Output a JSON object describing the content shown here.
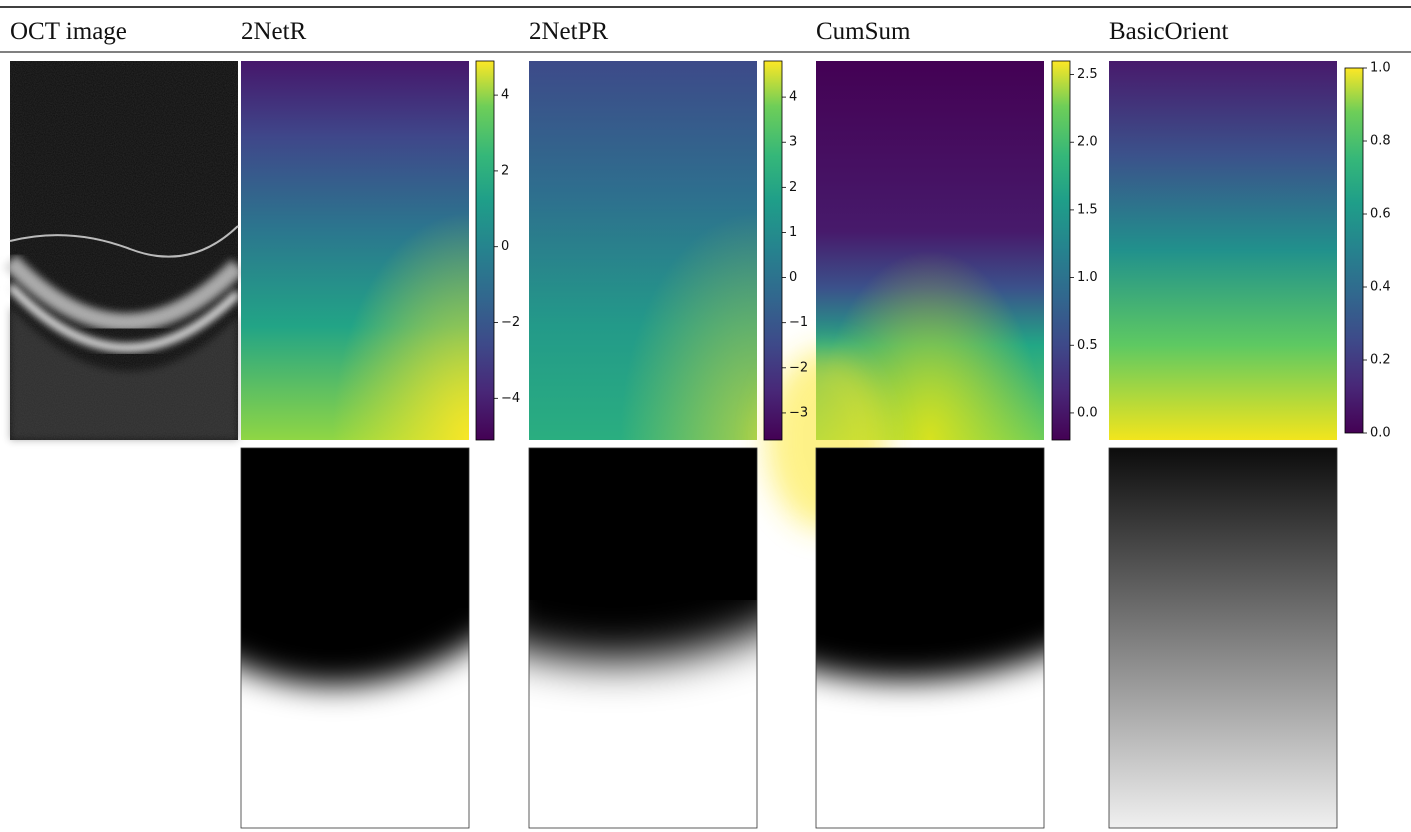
{
  "header": {
    "columns": [
      "OCT image",
      "2NetR",
      "2NetPR",
      "CumSum",
      "BasicOrient"
    ]
  },
  "colorbars": [
    {
      "lim": [
        -5.1,
        4.9
      ],
      "ticks": [
        4,
        2,
        0,
        {
          "value": -2,
          "label": "−2"
        },
        {
          "value": -4,
          "label": "−4"
        }
      ]
    },
    {
      "lim": [
        -3.6,
        4.8
      ],
      "ticks": [
        4,
        3,
        2,
        1,
        0,
        {
          "value": -1,
          "label": "−1"
        },
        {
          "value": -2,
          "label": "−2"
        },
        {
          "value": -3,
          "label": "−3"
        }
      ]
    },
    {
      "lim": [
        -0.2,
        2.6
      ],
      "ticks": [
        2.5,
        {
          "value": 2,
          "label": "2.0"
        },
        1.5,
        {
          "value": 1,
          "label": "1.0"
        },
        0.5,
        {
          "value": 0,
          "label": "0.0"
        }
      ]
    },
    {
      "lim": [
        0,
        1
      ],
      "ticks": [
        {
          "value": 1,
          "label": "1.0"
        },
        0.8,
        0.6,
        0.4,
        0.2,
        {
          "value": 0,
          "label": "0.0"
        }
      ]
    }
  ]
}
